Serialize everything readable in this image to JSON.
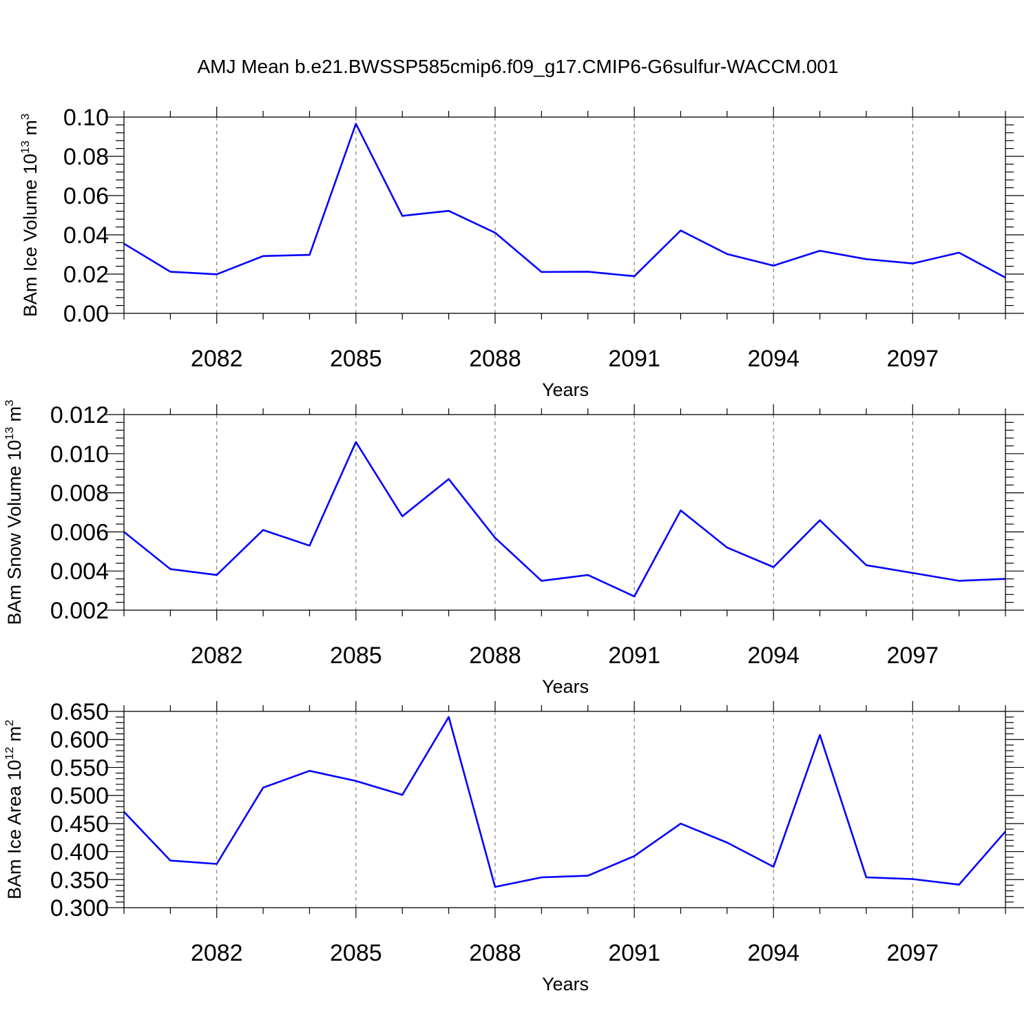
{
  "title": "AMJ Mean b.e21.BWSSP585cmip6.f09_g17.CMIP6-G6sulfur-WACCM.001",
  "line_color": "#0000ff",
  "chart_data": [
    {
      "type": "line",
      "xlabel": "Years",
      "ylabel": {
        "text": "BAm Ice Volume 10",
        "exp": "13",
        "unit": " m",
        "unit_exp": "3"
      },
      "xlim": [
        2080,
        2099
      ],
      "ylim": [
        0.0,
        0.1
      ],
      "yticks": [
        "0.00",
        "0.02",
        "0.04",
        "0.06",
        "0.08",
        "0.10"
      ],
      "xticks": [
        "2082",
        "2085",
        "2088",
        "2091",
        "2094",
        "2097"
      ],
      "x": [
        2080,
        2081,
        2082,
        2083,
        2084,
        2085,
        2086,
        2087,
        2088,
        2089,
        2090,
        2091,
        2092,
        2093,
        2094,
        2095,
        2096,
        2097,
        2098,
        2099
      ],
      "y": [
        0.0355,
        0.0212,
        0.0199,
        0.0292,
        0.0298,
        0.0966,
        0.0497,
        0.0522,
        0.0411,
        0.0211,
        0.0212,
        0.0189,
        0.0422,
        0.0302,
        0.0243,
        0.0319,
        0.0276,
        0.0254,
        0.0309,
        0.0182
      ]
    },
    {
      "type": "line",
      "xlabel": "Years",
      "ylabel": {
        "text": "BAm Snow Volume 10",
        "exp": "13",
        "unit": " m",
        "unit_exp": "3"
      },
      "xlim": [
        2080,
        2099
      ],
      "ylim": [
        0.002,
        0.012
      ],
      "yticks": [
        "0.002",
        "0.004",
        "0.006",
        "0.008",
        "0.010",
        "0.012"
      ],
      "xticks": [
        "2082",
        "2085",
        "2088",
        "2091",
        "2094",
        "2097"
      ],
      "x": [
        2080,
        2081,
        2082,
        2083,
        2084,
        2085,
        2086,
        2087,
        2088,
        2089,
        2090,
        2091,
        2092,
        2093,
        2094,
        2095,
        2096,
        2097,
        2098,
        2099
      ],
      "y": [
        0.006,
        0.0041,
        0.0038,
        0.0061,
        0.0053,
        0.0106,
        0.0068,
        0.0087,
        0.0057,
        0.0035,
        0.0038,
        0.0027,
        0.0071,
        0.0052,
        0.0042,
        0.0066,
        0.0043,
        0.0039,
        0.0035,
        0.0036
      ]
    },
    {
      "type": "line",
      "xlabel": "Years",
      "ylabel": {
        "text": "BAm Ice Area 10",
        "exp": "12",
        "unit": " m",
        "unit_exp": "2"
      },
      "xlim": [
        2080,
        2099
      ],
      "ylim": [
        0.3,
        0.65
      ],
      "yticks": [
        "0.300",
        "0.350",
        "0.400",
        "0.450",
        "0.500",
        "0.550",
        "0.600",
        "0.650"
      ],
      "xticks": [
        "2082",
        "2085",
        "2088",
        "2091",
        "2094",
        "2097"
      ],
      "x": [
        2080,
        2081,
        2082,
        2083,
        2084,
        2085,
        2086,
        2087,
        2088,
        2089,
        2090,
        2091,
        2092,
        2093,
        2094,
        2095,
        2096,
        2097,
        2098,
        2099
      ],
      "y": [
        0.471,
        0.384,
        0.378,
        0.514,
        0.544,
        0.526,
        0.501,
        0.64,
        0.337,
        0.354,
        0.357,
        0.392,
        0.45,
        0.416,
        0.373,
        0.608,
        0.354,
        0.351,
        0.341,
        0.436
      ]
    }
  ]
}
